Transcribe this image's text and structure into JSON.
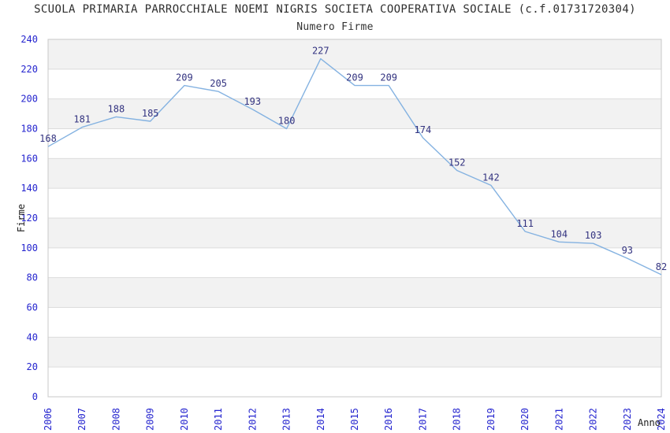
{
  "header": {
    "title": "SCUOLA PRIMARIA PARROCCHIALE NOEMI NIGRIS SOCIETA COOPERATIVA SOCIALE (c.f.01731720304)",
    "subtitle": "Numero Firme"
  },
  "chart_data": {
    "type": "line",
    "title": "Numero Firme",
    "xlabel": "Anno",
    "ylabel": "Firme",
    "categories": [
      "2006",
      "2007",
      "2008",
      "2009",
      "2010",
      "2011",
      "2012",
      "2013",
      "2014",
      "2015",
      "2016",
      "2017",
      "2018",
      "2019",
      "2020",
      "2021",
      "2022",
      "2023",
      "2024"
    ],
    "values": [
      168,
      181,
      188,
      185,
      209,
      205,
      193,
      180,
      227,
      209,
      209,
      174,
      152,
      142,
      111,
      104,
      103,
      93,
      82
    ],
    "ylim": [
      0,
      240
    ],
    "ytick_step": 20,
    "grid": true,
    "legend_position": "none",
    "point_labels_visible": true,
    "banded_background": true,
    "colors": {
      "line": "#84b2e1",
      "data_label": "#333380",
      "tick_label": "#2525cf",
      "band": "#f2f2f2",
      "gridline": "#dcdcdc",
      "plot_border": "#c8c8c8",
      "axis_title": "#1a1a1a",
      "background": "#ffffff"
    }
  }
}
